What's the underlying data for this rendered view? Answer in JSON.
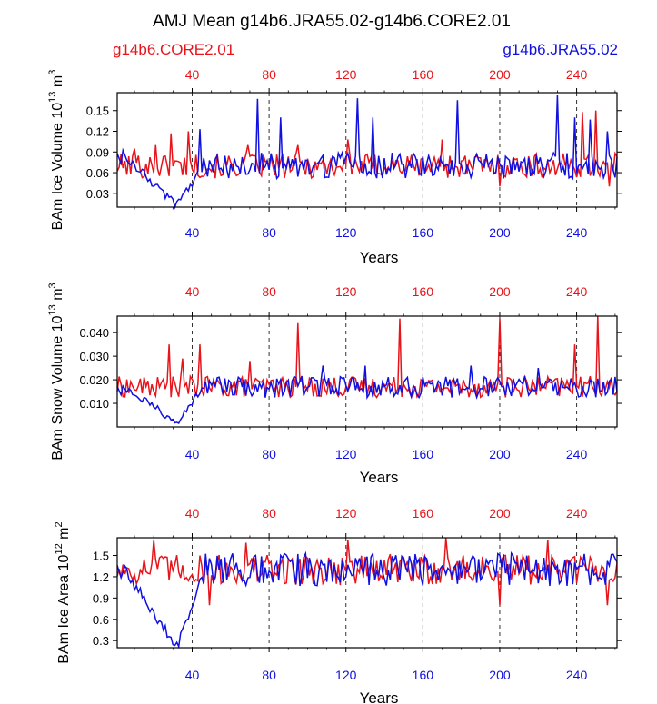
{
  "chart_data": {
    "title": "AMJ Mean g14b6.JRA55.02-g14b6.CORE2.01",
    "legend": {
      "red": "g14b6.CORE2.01",
      "blue": "g14b6.JRA55.02",
      "red_color": "#e8141a",
      "blue_color": "#1010e0"
    },
    "xlim": [
      1,
      261
    ],
    "xticks": [
      "40",
      "80",
      "120",
      "160",
      "200",
      "240"
    ],
    "xtick_values": [
      40,
      80,
      120,
      160,
      200,
      240
    ],
    "panels": [
      {
        "type": "line",
        "xlabel": "Years",
        "ylabel_main": "BAm Ice Volume 10",
        "ylabel_exp": "13",
        "ylabel_unit": " m",
        "ylabel_unit_exp": "3",
        "ylim": [
          0.01,
          0.176
        ],
        "yticks": [
          "0.15",
          "0.12",
          "0.09",
          "0.06",
          "0.03"
        ],
        "ytick_values": [
          0.15,
          0.12,
          0.09,
          0.06,
          0.03
        ],
        "base": 0.07,
        "amp": 0.018,
        "blue_floor": 0.012,
        "blue_start": 0.095,
        "red_spikes": [
          [
            10,
            0.095
          ],
          [
            21,
            0.1
          ],
          [
            29,
            0.117
          ],
          [
            38,
            0.12
          ],
          [
            69,
            0.1
          ],
          [
            95,
            0.1
          ],
          [
            121,
            0.108
          ],
          [
            170,
            0.108
          ],
          [
            200,
            0.103
          ],
          [
            243,
            0.148
          ],
          [
            250,
            0.15
          ]
        ],
        "blue_spikes": [
          [
            44,
            0.123
          ],
          [
            74,
            0.167
          ],
          [
            86,
            0.14
          ],
          [
            126,
            0.168
          ],
          [
            134,
            0.14
          ],
          [
            178,
            0.165
          ],
          [
            230,
            0.172
          ],
          [
            239,
            0.14
          ],
          [
            247,
            0.137
          ],
          [
            256,
            0.12
          ]
        ],
        "red_dips": [
          [
            200,
            0.04
          ],
          [
            257,
            0.04
          ]
        ],
        "series": [
          {
            "name": "g14b6.CORE2.01",
            "color": "red"
          },
          {
            "name": "g14b6.JRA55.02",
            "color": "blue"
          }
        ]
      },
      {
        "type": "line",
        "xlabel": "Years",
        "ylabel_main": "BAm Snow Volume 10",
        "ylabel_exp": "13",
        "ylabel_unit": " m",
        "ylabel_unit_exp": "3",
        "ylim": [
          0.0,
          0.047
        ],
        "yticks": [
          "0.040",
          "0.030",
          "0.020",
          "0.010"
        ],
        "ytick_values": [
          0.04,
          0.03,
          0.02,
          0.01
        ],
        "base": 0.017,
        "amp": 0.0045,
        "blue_floor": 0.002,
        "blue_start": 0.019,
        "red_spikes": [
          [
            28,
            0.035
          ],
          [
            35,
            0.029
          ],
          [
            44,
            0.035
          ],
          [
            70,
            0.028
          ],
          [
            95,
            0.044
          ],
          [
            148,
            0.046
          ],
          [
            200,
            0.046
          ],
          [
            239,
            0.035
          ],
          [
            251,
            0.047
          ]
        ],
        "blue_spikes": [
          [
            108,
            0.026
          ],
          [
            130,
            0.026
          ],
          [
            185,
            0.026
          ],
          [
            220,
            0.025
          ]
        ],
        "red_dips": [],
        "series": [
          {
            "name": "g14b6.CORE2.01",
            "color": "red"
          },
          {
            "name": "g14b6.JRA55.02",
            "color": "blue"
          }
        ]
      },
      {
        "type": "line",
        "xlabel": "Years",
        "ylabel_main": "BAm Ice Area 10",
        "ylabel_exp": "12",
        "ylabel_unit": " m",
        "ylabel_unit_exp": "2",
        "ylim": [
          0.2,
          1.75
        ],
        "yticks": [
          "1.5",
          "1.2",
          "0.9",
          "0.6",
          "0.3"
        ],
        "ytick_values": [
          1.5,
          1.2,
          0.9,
          0.6,
          0.3
        ],
        "base": 1.3,
        "amp": 0.22,
        "blue_floor": 0.2,
        "blue_start": 1.45,
        "red_spikes": [
          [
            20,
            1.72
          ],
          [
            68,
            1.68
          ],
          [
            121,
            1.72
          ],
          [
            172,
            1.75
          ],
          [
            225,
            1.72
          ]
        ],
        "blue_spikes": [],
        "red_dips": [
          [
            49,
            0.8
          ],
          [
            200,
            0.8
          ],
          [
            256,
            0.8
          ]
        ],
        "series": [
          {
            "name": "g14b6.CORE2.01",
            "color": "red"
          },
          {
            "name": "g14b6.JRA55.02",
            "color": "blue"
          }
        ]
      }
    ]
  }
}
